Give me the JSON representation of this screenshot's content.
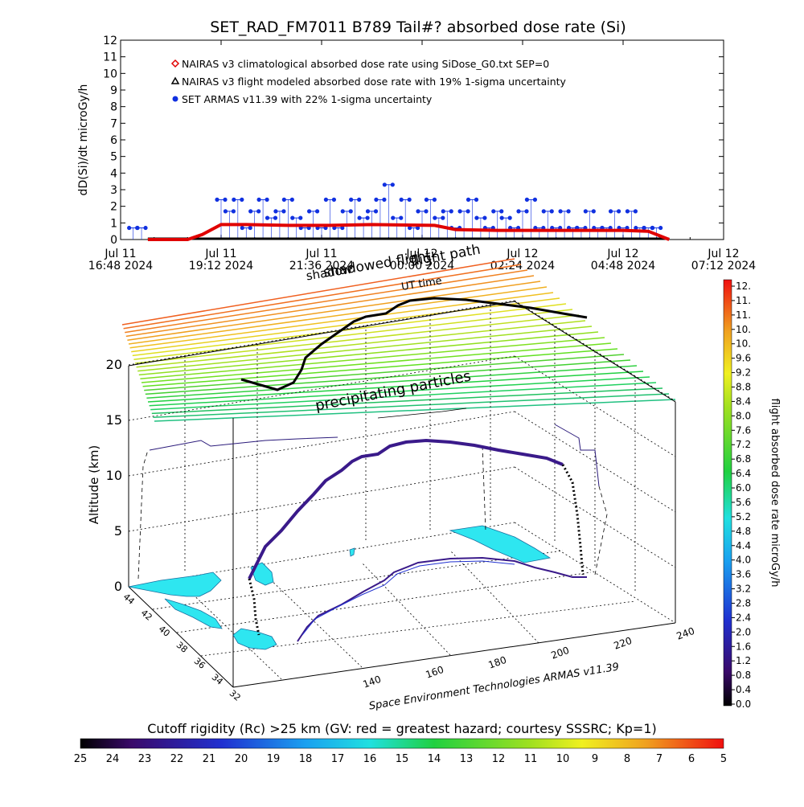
{
  "title": "SET_RAD_FM7011  B789 Tail#? absorbed dose rate (Si)",
  "time_plot": {
    "ylabel": "dD(Si)/dt microGy/h",
    "y_ticks": [
      "0",
      "1",
      "2",
      "3",
      "4",
      "5",
      "6",
      "7",
      "8",
      "9",
      "10",
      "11",
      "12"
    ],
    "x_ticks": [
      {
        "l1": "Jul 11",
        "l2": "16:48 2024"
      },
      {
        "l1": "Jul 11",
        "l2": "19:12 2024"
      },
      {
        "l1": "Jul 11",
        "l2": "21:36 2024"
      },
      {
        "l1": "Jul 12",
        "l2": "00:00 2024"
      },
      {
        "l1": "Jul 12",
        "l2": "02:24 2024"
      },
      {
        "l1": "Jul 12",
        "l2": "04:48 2024"
      },
      {
        "l1": "Jul 12",
        "l2": "07:12 2024"
      }
    ],
    "legend": [
      {
        "label": "NAIRAS v3 climatological absorbed dose rate using SiDose_G0.txt SEP=0",
        "color": "#e00000",
        "marker": "diamond"
      },
      {
        "label": "NAIRAS v3 flight modeled absorbed dose rate with 19% 1-sigma uncertainty",
        "color": "#000000",
        "marker": "triangle"
      },
      {
        "label": "SET ARMAS v11.39 with 22% 1-sigma uncertainty",
        "color": "#1030e0",
        "marker": "circle"
      }
    ]
  },
  "chart_data": [
    {
      "type": "line",
      "title": "SET_RAD_FM7011  B789 Tail#? absorbed dose rate (Si)",
      "xlabel": "",
      "ylabel": "dD(Si)/dt microGy/h",
      "x_unit": "hours after Jul 11 16:48 2024",
      "xlim": [
        0,
        14.4
      ],
      "ylim": [
        0,
        12
      ],
      "series": [
        {
          "name": "NAIRAS v3 climatological absorbed dose rate using SiDose_G0.txt SEP=0",
          "x": [
            0.65,
            1.6,
            1.95,
            2.4,
            3.0,
            4.0,
            5.0,
            6.0,
            7.5,
            8.0,
            9.0,
            10.0,
            11.0,
            12.0,
            12.6,
            12.9,
            13.1
          ],
          "y": [
            0,
            0,
            0.3,
            0.9,
            0.9,
            0.85,
            0.85,
            0.9,
            0.85,
            0.6,
            0.55,
            0.55,
            0.55,
            0.55,
            0.5,
            0.2,
            0
          ]
        },
        {
          "name": "NAIRAS v3 flight modeled absorbed dose rate with 19% 1-sigma uncertainty",
          "x": [
            0.65,
            2.0,
            3.0,
            5.0,
            7.0,
            9.0,
            11.0,
            13.1
          ],
          "y": [
            0,
            0,
            0,
            0,
            0,
            0,
            0,
            0
          ]
        },
        {
          "name": "SET ARMAS v11.39 with 22% 1-sigma uncertainty",
          "x": [
            0.3,
            0.5,
            2.4,
            2.6,
            2.8,
            3.0,
            3.2,
            3.4,
            3.6,
            3.8,
            4.0,
            4.2,
            4.4,
            4.6,
            4.8,
            5.0,
            5.2,
            5.4,
            5.6,
            5.8,
            6.0,
            6.2,
            6.4,
            6.6,
            6.8,
            7.0,
            7.2,
            7.4,
            7.6,
            7.8,
            8.0,
            8.2,
            8.4,
            8.6,
            8.8,
            9.0,
            9.2,
            9.4,
            9.6,
            9.8,
            10.0,
            10.2,
            10.4,
            10.6,
            10.8,
            11.0,
            11.2,
            11.4,
            11.6,
            11.8,
            12.0,
            12.2,
            12.4,
            12.6,
            12.8
          ],
          "y": [
            0.7,
            0.7,
            2.4,
            1.7,
            2.4,
            0.7,
            1.7,
            2.4,
            1.3,
            1.7,
            2.4,
            1.3,
            0.7,
            1.7,
            0.7,
            2.4,
            0.7,
            1.7,
            2.4,
            1.3,
            1.7,
            2.4,
            3.3,
            1.3,
            2.4,
            0.7,
            1.7,
            2.4,
            1.3,
            1.7,
            0.7,
            1.7,
            2.4,
            1.3,
            0.7,
            1.7,
            1.3,
            0.7,
            1.7,
            2.4,
            0.7,
            1.7,
            0.7,
            1.7,
            0.7,
            0.7,
            1.7,
            0.7,
            0.7,
            1.7,
            0.7,
            1.7,
            0.7,
            0.7,
            0.7
          ]
        }
      ]
    },
    {
      "type": "scatter",
      "subtype": "3d-flight-track",
      "zlabel": "Altitude (km)",
      "z_ticks": [
        "0",
        "5",
        "10",
        "15",
        "20"
      ],
      "lat_ticks": [
        "32",
        "34",
        "36",
        "38",
        "40",
        "42",
        "44"
      ],
      "lon_ticks": [
        "140",
        "160",
        "180",
        "200",
        "220",
        "240"
      ],
      "annotations": [
        "precipitating particles",
        "flight path",
        "shadowed flight",
        "UT time",
        "shadow"
      ],
      "credit": "Space Environment Technologies ARMAS v11.39",
      "series": [
        {
          "name": "flight path",
          "lon": [
            140,
            150,
            160,
            170,
            180,
            190,
            200,
            210,
            220,
            230,
            235
          ],
          "lat": [
            35,
            37,
            39,
            41,
            42,
            43,
            43,
            42,
            40,
            39,
            38
          ],
          "alt_km": [
            0,
            4,
            9,
            11,
            11.5,
            12,
            12.5,
            12.8,
            12.5,
            11,
            0
          ]
        }
      ]
    }
  ],
  "right_colorbar": {
    "label": "flight absorbed dose rate microGy/h",
    "ticks": [
      "12.",
      "11.",
      "11.",
      "10.",
      "10.",
      "9.6",
      "9.2",
      "8.8",
      "8.4",
      "8.0",
      "7.6",
      "7.2",
      "6.8",
      "6.4",
      "6.0",
      "5.6",
      "5.2",
      "4.8",
      "4.4",
      "4.0",
      "3.6",
      "3.2",
      "2.8",
      "2.4",
      "2.0",
      "1.6",
      "1.2",
      "0.8",
      "0.4",
      "0.0"
    ]
  },
  "bottom_colorbar": {
    "title": "Cutoff rigidity (Rc) >25 km (GV: red = greatest hazard; courtesy SSSRC; Kp=1)",
    "ticks": [
      "25",
      "24",
      "23",
      "22",
      "21",
      "20",
      "19",
      "18",
      "17",
      "16",
      "15",
      "14",
      "13",
      "12",
      "11",
      "10",
      "9",
      "8",
      "7",
      "6",
      "5"
    ]
  },
  "scene_3d": {
    "zlabel": "Altitude (km)",
    "z_ticks": [
      "0",
      "5",
      "10",
      "15",
      "20"
    ],
    "lat_ticks": [
      "44",
      "42",
      "40",
      "38",
      "36",
      "34",
      "32"
    ],
    "lon_ticks": [
      "140",
      "160",
      "180",
      "200",
      "220",
      "240"
    ],
    "label_precip": "precipitating particles",
    "label_flightpath": "flight path",
    "label_shadowed": "shadowed flight",
    "label_ut": "UT time",
    "label_shadow": "shadow",
    "credit": "Space Environment Technologies ARMAS v11.39"
  },
  "colors": {
    "nairas_clim": "#e00000",
    "nairas_flight": "#000000",
    "armas": "#1030e0",
    "land": "#2ee6f0",
    "track": "#3a1a8a"
  }
}
